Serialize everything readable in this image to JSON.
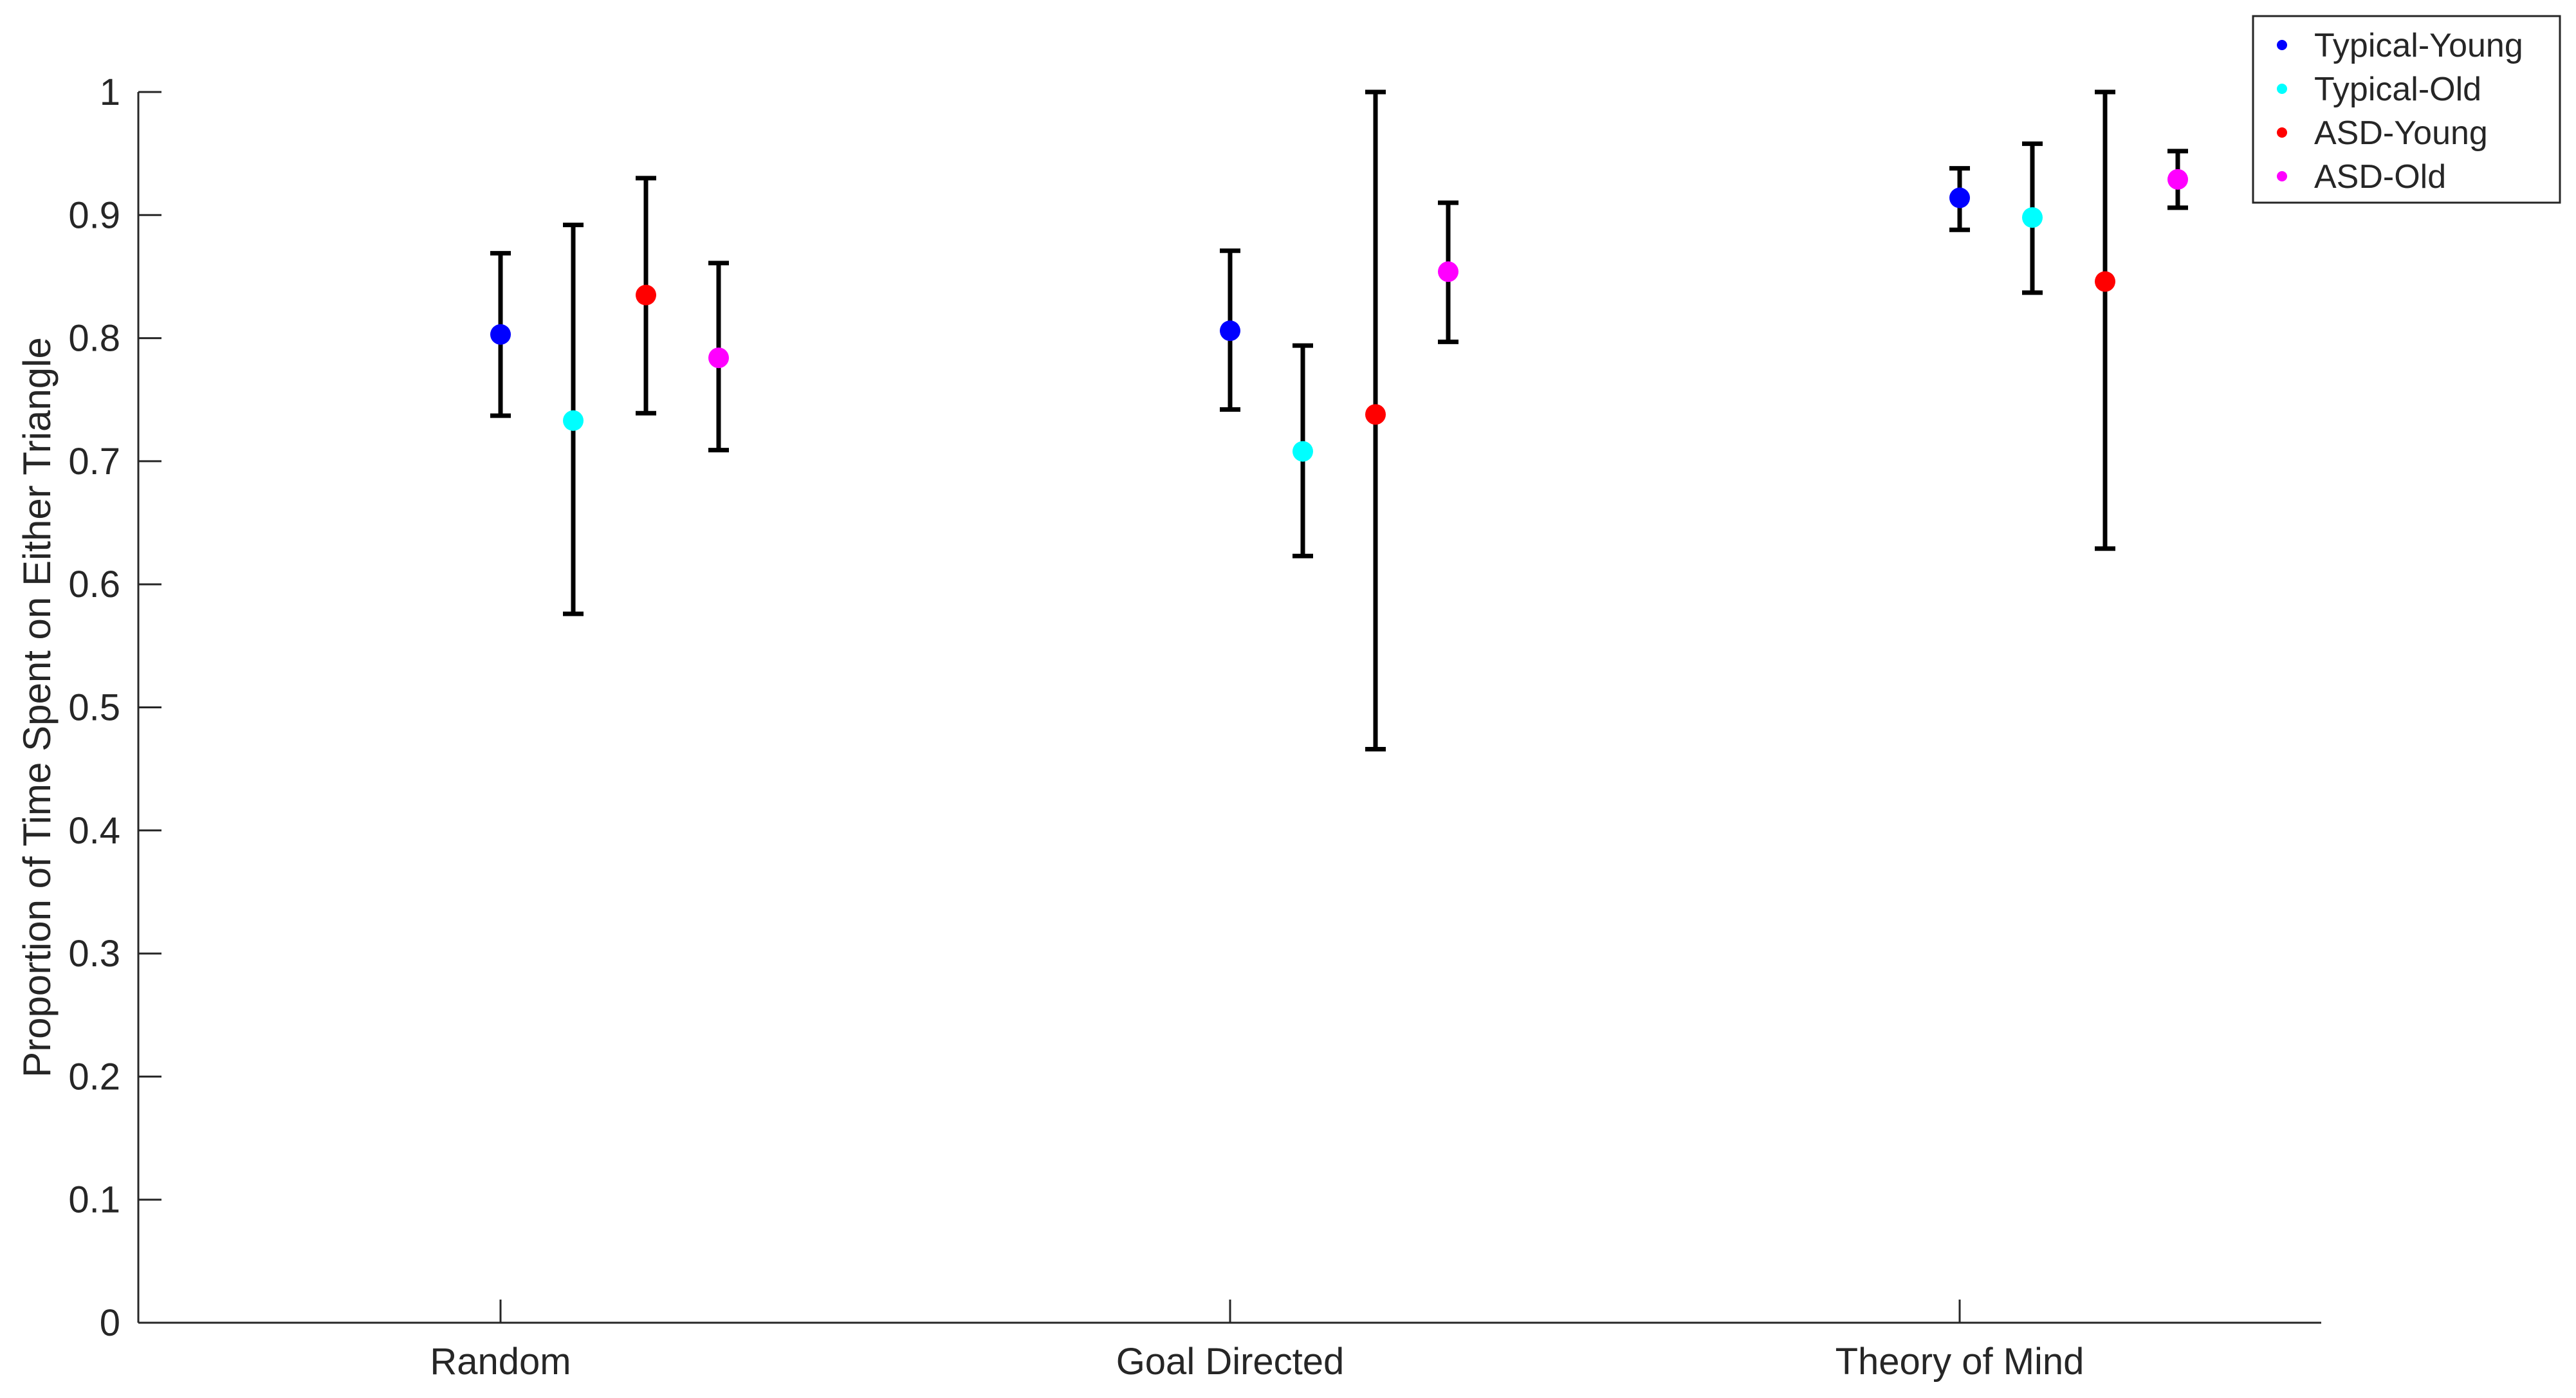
{
  "chart_data": {
    "type": "scatter",
    "subtype": "errorbar",
    "title": "",
    "xlabel": "",
    "ylabel": "Proportion of Time Spent on Either Triangle",
    "categories": [
      "Random",
      "Goal Directed",
      "Theory of Mind"
    ],
    "ylim": [
      0,
      1
    ],
    "yticks": [
      "0",
      "0.1",
      "0.2",
      "0.3",
      "0.4",
      "0.5",
      "0.6",
      "0.7",
      "0.8",
      "0.9",
      "1"
    ],
    "grid": false,
    "legend_position": "top-right",
    "series": [
      {
        "name": "Typical-Young",
        "color": "#0000ff",
        "values": [
          0.803,
          0.806,
          0.914
        ],
        "lower": [
          0.737,
          0.742,
          0.888
        ],
        "upper": [
          0.869,
          0.871,
          0.938
        ]
      },
      {
        "name": "Typical-Old",
        "color": "#00ffff",
        "values": [
          0.733,
          0.708,
          0.898
        ],
        "lower": [
          0.576,
          0.623,
          0.837
        ],
        "upper": [
          0.892,
          0.794,
          0.958
        ]
      },
      {
        "name": "ASD-Young",
        "color": "#ff0000",
        "values": [
          0.835,
          0.738,
          0.846
        ],
        "lower": [
          0.739,
          0.466,
          0.629
        ],
        "upper": [
          0.93,
          1.0,
          1.0
        ]
      },
      {
        "name": "ASD-Old",
        "color": "#ff00ff",
        "values": [
          0.784,
          0.854,
          0.929
        ],
        "lower": [
          0.709,
          0.797,
          0.906
        ],
        "upper": [
          0.861,
          0.91,
          0.952
        ]
      }
    ]
  }
}
